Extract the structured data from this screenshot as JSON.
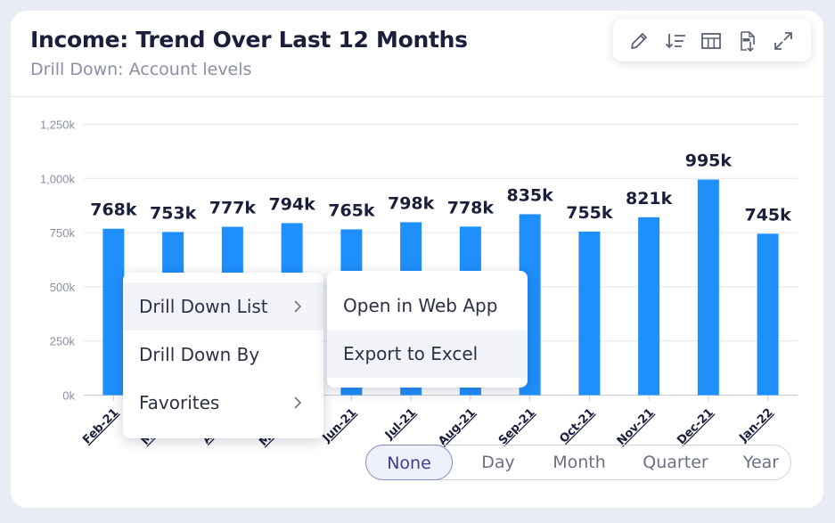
{
  "header": {
    "title": "Income: Trend Over Last 12 Months",
    "subtitle": "Drill Down: Account levels"
  },
  "toolbar": {
    "icons": [
      "pencil-icon",
      "sort-icon",
      "table-icon",
      "pdf-download-icon",
      "expand-icon"
    ]
  },
  "context_menu": {
    "items": [
      {
        "label": "Drill Down List",
        "has_submenu": true
      },
      {
        "label": "Drill Down By",
        "has_submenu": false
      },
      {
        "label": "Favorites",
        "has_submenu": true
      }
    ],
    "submenu": {
      "items": [
        {
          "label": "Open in Web App"
        },
        {
          "label": "Export to Excel"
        }
      ]
    }
  },
  "granularity": {
    "options": [
      "None",
      "Day",
      "Month",
      "Quarter",
      "Year"
    ],
    "selected": "None"
  },
  "chart_data": {
    "type": "bar",
    "categories": [
      "Feb-21",
      "Mar-21",
      "Apr-21",
      "May-21",
      "Jun-21",
      "Jul-21",
      "Aug-21",
      "Sep-21",
      "Oct-21",
      "Nov-21",
      "Dec-21",
      "Jan-22"
    ],
    "values": [
      768,
      753,
      777,
      794,
      765,
      798,
      778,
      835,
      755,
      821,
      995,
      745
    ],
    "data_labels": [
      "768k",
      "753k",
      "777k",
      "794k",
      "765k",
      "798k",
      "778k",
      "835k",
      "755k",
      "821k",
      "995k",
      "745k"
    ],
    "units": "thousands",
    "ylim": [
      0,
      1250
    ],
    "yticks": [
      0,
      250,
      500,
      750,
      1000,
      1250
    ],
    "ytick_labels": [
      "0k",
      "250k",
      "500k",
      "750k",
      "1,000k",
      "1,250k"
    ],
    "grid": true,
    "bar_color": "#1e8ffb",
    "xlabel": "",
    "ylabel": ""
  }
}
